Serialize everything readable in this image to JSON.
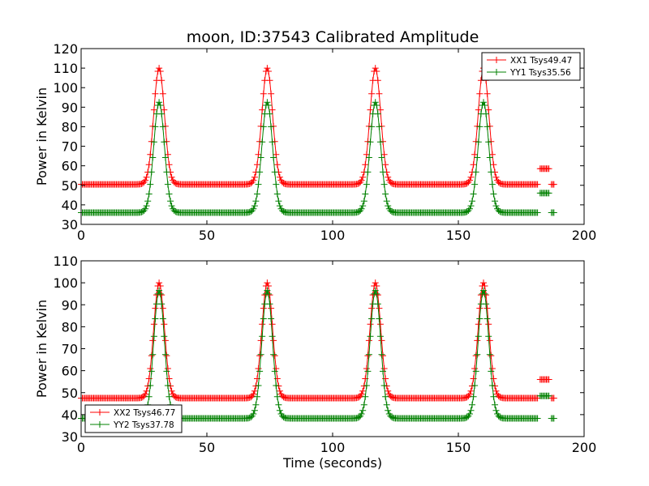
{
  "chart_data": [
    {
      "type": "line",
      "title": "moon, ID:37543 Calibrated Amplitude",
      "xlabel": "",
      "ylabel": "Power in Kelvin",
      "xlim": [
        0,
        200
      ],
      "ylim": [
        30,
        120
      ],
      "xticks": [
        0,
        50,
        100,
        150,
        200
      ],
      "yticks": [
        30,
        40,
        50,
        60,
        70,
        80,
        90,
        100,
        110,
        120
      ],
      "legend_position": "top-right",
      "grid": false,
      "marker": "plus",
      "peak_times": [
        31,
        74,
        117,
        160
      ],
      "calibration_window": [
        182.5,
        186
      ],
      "sample_range": [
        0,
        188
      ],
      "series": [
        {
          "name": "XX1 Tsys49.47",
          "color": "#ff0000",
          "baseline": 50.5,
          "peak": 110,
          "cal_level": 58.5
        },
        {
          "name": "YY1 Tsys35.56",
          "color": "#008000",
          "baseline": 36,
          "peak": 92.5,
          "cal_level": 46
        }
      ]
    },
    {
      "type": "line",
      "title": "",
      "xlabel": "Time (seconds)",
      "ylabel": "Power in Kelvin",
      "xlim": [
        0,
        200
      ],
      "ylim": [
        30,
        110
      ],
      "xticks": [
        0,
        50,
        100,
        150,
        200
      ],
      "yticks": [
        30,
        40,
        50,
        60,
        70,
        80,
        90,
        100,
        110
      ],
      "legend_position": "bottom-left",
      "grid": false,
      "marker": "plus",
      "peak_times": [
        31,
        74,
        117,
        160
      ],
      "calibration_window": [
        182.5,
        186
      ],
      "sample_range": [
        0,
        188
      ],
      "series": [
        {
          "name": "XX2 Tsys46.77",
          "color": "#ff0000",
          "baseline": 47.5,
          "peak": 100,
          "cal_level": 56
        },
        {
          "name": "YY2 Tsys37.78",
          "color": "#008000",
          "baseline": 38.3,
          "peak": 96.5,
          "cal_level": 48.5
        }
      ]
    }
  ]
}
